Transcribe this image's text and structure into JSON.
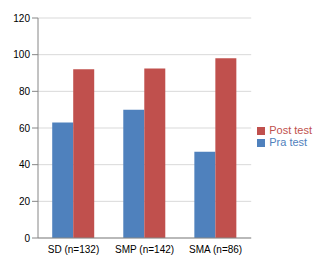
{
  "chart_data": {
    "type": "bar",
    "categories": [
      "SD (n=132)",
      "SMP (n=142)",
      "SMA (n=86)"
    ],
    "series": [
      {
        "name": "Pra test",
        "color": "#4f81bd",
        "values": [
          63,
          70,
          47
        ]
      },
      {
        "name": "Post test",
        "color": "#c0504d",
        "values": [
          92,
          92.5,
          98
        ]
      }
    ],
    "ylim": [
      0,
      120
    ],
    "yticks": [
      0,
      20,
      40,
      60,
      80,
      100,
      120
    ],
    "grid": true,
    "legend": "right"
  }
}
